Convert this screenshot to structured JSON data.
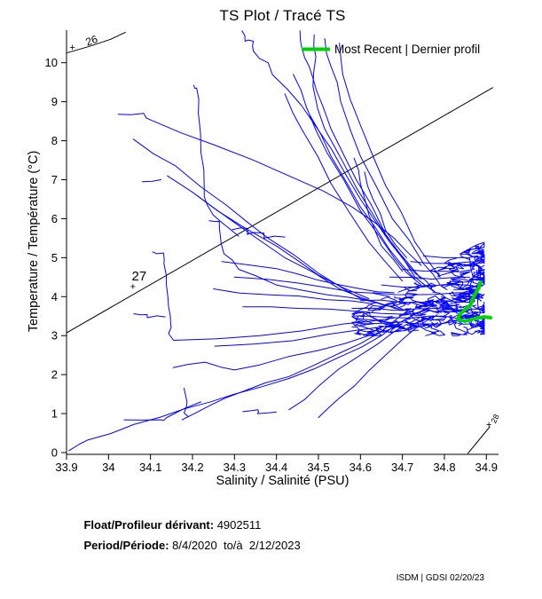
{
  "title": "TS Plot / Tracé TS",
  "legend": {
    "label": "Most Recent | Dernier profil",
    "color": "#00d400"
  },
  "axes": {
    "xlabel": "Salinity / Salinité (PSU)",
    "ylabel": "Temperature / Température (°C)",
    "x_tick_values": [
      33.9,
      34.0,
      34.1,
      34.2,
      34.3,
      34.4,
      34.5,
      34.6,
      34.7,
      34.8,
      34.9
    ],
    "x_tick_labels": [
      "33.9",
      "34",
      "34.1",
      "34.2",
      "34.3",
      "34.4",
      "34.5",
      "34.6",
      "34.7",
      "34.8",
      "34.9"
    ],
    "y_tick_values": [
      0,
      1,
      2,
      3,
      4,
      5,
      6,
      7,
      8,
      9,
      10
    ],
    "y_tick_labels": [
      "0",
      "1",
      "2",
      "3",
      "4",
      "5",
      "6",
      "7",
      "8",
      "9",
      "10"
    ]
  },
  "footer": {
    "float_label": "Float/Profileur dérivant:",
    "float_value": " 4902511",
    "period_label": "Period/Période:",
    "period_value": " 8/4/2020  to/à  2/12/2023"
  },
  "watermark": "ISDM | GDSI 02/20/23",
  "chart_data": {
    "type": "line",
    "title": "TS Plot / Tracé TS",
    "xlabel": "Salinity / Salinité (PSU)",
    "ylabel": "Temperature / Température (°C)",
    "xlim": [
      33.9,
      34.93
    ],
    "ylim": [
      0,
      10.82
    ],
    "grid": false,
    "legend_position": "top-right",
    "profile_color": "#0000ff",
    "recent_color": "#00d400",
    "contour_color": "#000000",
    "density_contours": [
      {
        "label": "26",
        "label_pos": [
          33.959,
          10.59
        ],
        "label_angle": -20,
        "plus_pos": [
          33.914,
          10.38
        ],
        "points": [
          [
            33.9,
            10.25
          ],
          [
            33.955,
            10.42
          ],
          [
            34.005,
            10.6
          ],
          [
            34.04,
            10.78
          ]
        ]
      },
      {
        "label": "27",
        "label_pos": [
          34.073,
          4.53
        ],
        "label_angle": 0,
        "plus_pos": [
          34.058,
          4.24
        ],
        "points": [
          [
            33.9,
            3.07
          ],
          [
            34.915,
            9.36
          ]
        ]
      },
      {
        "label": "28",
        "label_pos": [
          34.917,
          0.89
        ],
        "label_angle": -63,
        "plus_pos": [
          34.906,
          0.7
        ],
        "points": [
          [
            34.856,
            -0.02
          ],
          [
            34.908,
            0.66
          ]
        ]
      }
    ],
    "profiles": [
      [
        [
          34.318,
          10.82
        ],
        [
          34.325,
          10.55
        ],
        [
          34.345,
          10.55
        ],
        [
          34.345,
          10.3
        ],
        [
          34.38,
          10.0
        ],
        [
          34.39,
          9.7
        ],
        [
          34.46,
          8.9
        ],
        [
          34.53,
          7.8
        ],
        [
          34.6,
          6.5
        ],
        [
          34.67,
          5.4
        ],
        [
          34.73,
          4.6
        ],
        [
          34.77,
          4.25
        ]
      ],
      [
        [
          34.456,
          10.82
        ],
        [
          34.46,
          10.4
        ],
        [
          34.478,
          9.9
        ],
        [
          34.495,
          9.3
        ],
        [
          34.53,
          8.3
        ],
        [
          34.59,
          7.0
        ],
        [
          34.66,
          5.6
        ],
        [
          34.73,
          4.5
        ],
        [
          34.78,
          4.1
        ]
      ],
      [
        [
          34.49,
          10.72
        ],
        [
          34.494,
          10.15
        ],
        [
          34.487,
          9.4
        ],
        [
          34.515,
          8.3
        ],
        [
          34.59,
          6.8
        ],
        [
          34.67,
          5.4
        ],
        [
          34.745,
          4.45
        ]
      ],
      [
        [
          34.515,
          10.62
        ],
        [
          34.53,
          9.9
        ],
        [
          34.553,
          9.0
        ],
        [
          34.6,
          7.6
        ],
        [
          34.676,
          6.0
        ],
        [
          34.75,
          4.85
        ],
        [
          34.79,
          4.3
        ]
      ],
      [
        [
          34.55,
          10.5
        ],
        [
          34.558,
          9.7
        ],
        [
          34.6,
          8.4
        ],
        [
          34.66,
          6.85
        ],
        [
          34.73,
          5.4
        ],
        [
          34.79,
          4.5
        ]
      ],
      [
        [
          34.44,
          9.7
        ],
        [
          34.47,
          8.9
        ],
        [
          34.52,
          7.7
        ],
        [
          34.6,
          6.2
        ],
        [
          34.68,
          5.0
        ],
        [
          34.745,
          4.3
        ]
      ],
      [
        [
          34.42,
          9.2
        ],
        [
          34.46,
          8.3
        ],
        [
          34.53,
          6.9
        ],
        [
          34.62,
          5.4
        ],
        [
          34.7,
          4.4
        ]
      ],
      [
        [
          34.48,
          8.65
        ],
        [
          34.53,
          7.6
        ],
        [
          34.6,
          6.3
        ],
        [
          34.67,
          5.2
        ],
        [
          34.73,
          4.45
        ]
      ],
      [
        [
          34.585,
          7.55
        ],
        [
          34.6,
          6.9
        ],
        [
          34.62,
          6.1
        ],
        [
          34.65,
          5.3
        ],
        [
          34.7,
          4.65
        ]
      ],
      [
        [
          34.61,
          7.2
        ],
        [
          34.63,
          6.5
        ],
        [
          34.66,
          5.7
        ],
        [
          34.71,
          5.0
        ]
      ],
      [
        [
          34.203,
          9.42
        ],
        [
          34.21,
          9.35
        ],
        [
          34.214,
          8.7
        ],
        [
          34.22,
          7.7
        ],
        [
          34.228,
          6.8
        ],
        [
          34.235,
          6.35
        ],
        [
          34.27,
          5.9
        ],
        [
          34.31,
          5.55
        ]
      ],
      [
        [
          34.023,
          8.68
        ],
        [
          34.084,
          8.7
        ],
        [
          34.09,
          8.58
        ],
        [
          34.25,
          7.9
        ],
        [
          34.44,
          7.05
        ],
        [
          34.58,
          6.3
        ],
        [
          34.68,
          5.5
        ],
        [
          34.745,
          4.8
        ]
      ],
      [
        [
          34.059,
          8.04
        ],
        [
          34.16,
          7.35
        ],
        [
          34.28,
          6.35
        ],
        [
          34.38,
          5.5
        ],
        [
          34.5,
          4.6
        ],
        [
          34.6,
          3.95
        ],
        [
          34.7,
          3.65
        ]
      ],
      [
        [
          34.21,
          6.6
        ],
        [
          34.3,
          5.9
        ],
        [
          34.42,
          5.0
        ],
        [
          34.55,
          4.2
        ],
        [
          34.655,
          3.8
        ]
      ],
      [
        [
          34.14,
          7.1
        ],
        [
          34.26,
          6.2
        ],
        [
          34.4,
          5.3
        ],
        [
          34.5,
          4.55
        ],
        [
          34.62,
          3.95
        ]
      ],
      [
        [
          34.24,
          5.95
        ],
        [
          34.264,
          5.93
        ],
        [
          34.266,
          5.6
        ],
        [
          34.275,
          5.1
        ],
        [
          34.31,
          4.7
        ],
        [
          34.4,
          4.3
        ],
        [
          34.52,
          4.05
        ],
        [
          34.62,
          3.9
        ]
      ],
      [
        [
          34.295,
          5.72
        ],
        [
          34.33,
          5.75
        ],
        [
          34.33,
          5.6
        ],
        [
          34.37,
          5.63
        ],
        [
          34.37,
          5.5
        ],
        [
          34.42,
          5.53
        ]
      ],
      [
        [
          34.105,
          5.15
        ],
        [
          34.131,
          5.12
        ],
        [
          34.132,
          4.85
        ],
        [
          34.138,
          4.3
        ],
        [
          34.143,
          3.75
        ],
        [
          34.148,
          3.3
        ],
        [
          34.143,
          3.05
        ],
        [
          34.155,
          2.88
        ],
        [
          34.36,
          3.0
        ],
        [
          34.56,
          3.3
        ],
        [
          34.68,
          3.45
        ]
      ],
      [
        [
          34.253,
          2.73
        ],
        [
          34.44,
          2.87
        ],
        [
          34.6,
          3.15
        ],
        [
          34.7,
          3.3
        ]
      ],
      [
        [
          34.154,
          2.18
        ],
        [
          34.23,
          2.32
        ],
        [
          34.3,
          2.12
        ],
        [
          34.36,
          2.25
        ],
        [
          34.5,
          2.62
        ],
        [
          34.62,
          3.0
        ],
        [
          34.7,
          3.3
        ]
      ],
      [
        [
          34.06,
          3.56
        ],
        [
          34.092,
          3.54
        ],
        [
          34.092,
          3.46
        ],
        [
          34.135,
          3.48
        ]
      ],
      [
        [
          34.08,
          6.95
        ],
        [
          34.125,
          7.0
        ]
      ],
      [
        [
          34.27,
          4.9
        ],
        [
          34.4,
          4.72
        ],
        [
          34.5,
          4.42
        ],
        [
          34.6,
          4.2
        ],
        [
          34.68,
          4.1
        ]
      ],
      [
        [
          34.3,
          4.5
        ],
        [
          34.45,
          4.35
        ],
        [
          34.58,
          4.12
        ],
        [
          34.67,
          4.0
        ]
      ],
      [
        [
          34.25,
          4.2
        ],
        [
          34.38,
          4.05
        ],
        [
          34.52,
          3.92
        ],
        [
          34.63,
          3.82
        ]
      ],
      [
        [
          34.32,
          3.74
        ],
        [
          34.45,
          3.7
        ],
        [
          34.6,
          3.62
        ],
        [
          34.7,
          3.55
        ]
      ],
      [
        [
          33.906,
          0.05
        ],
        [
          33.95,
          0.32
        ],
        [
          34.06,
          0.72
        ],
        [
          34.18,
          1.12
        ],
        [
          34.3,
          1.5
        ],
        [
          34.43,
          1.9
        ],
        [
          34.55,
          2.45
        ],
        [
          34.65,
          3.0
        ],
        [
          34.73,
          3.55
        ],
        [
          34.78,
          3.8
        ]
      ],
      [
        [
          34.175,
          0.84
        ],
        [
          34.24,
          1.2
        ],
        [
          34.316,
          1.55
        ],
        [
          34.43,
          1.95
        ],
        [
          34.55,
          2.55
        ],
        [
          34.65,
          3.1
        ],
        [
          34.72,
          3.7
        ]
      ],
      [
        [
          34.037,
          0.84
        ],
        [
          34.122,
          0.84
        ],
        [
          34.139,
          0.9
        ],
        [
          34.22,
          1.3
        ]
      ],
      [
        [
          34.32,
          1.05
        ],
        [
          34.355,
          1.1
        ],
        [
          34.355,
          1.0
        ],
        [
          34.4,
          1.04
        ]
      ],
      [
        [
          34.18,
          1.65
        ],
        [
          34.187,
          1.3
        ],
        [
          34.18,
          1.02
        ],
        [
          34.19,
          0.92
        ]
      ],
      [
        [
          34.5,
          0.9
        ],
        [
          34.55,
          1.4
        ],
        [
          34.62,
          2.1
        ],
        [
          34.7,
          2.9
        ],
        [
          34.76,
          3.4
        ]
      ],
      [
        [
          34.43,
          1.1
        ],
        [
          34.5,
          1.7
        ],
        [
          34.6,
          2.5
        ],
        [
          34.68,
          3.1
        ],
        [
          34.74,
          3.45
        ]
      ],
      [
        [
          34.88,
          4.8
        ],
        [
          34.886,
          4.4
        ],
        [
          34.879,
          4.0
        ],
        [
          34.886,
          3.6
        ],
        [
          34.879,
          3.3
        ]
      ],
      [
        [
          34.86,
          5.0
        ],
        [
          34.868,
          4.5
        ],
        [
          34.86,
          4.05
        ],
        [
          34.868,
          3.55
        ],
        [
          34.862,
          3.25
        ]
      ],
      [
        [
          34.6,
          3.3
        ],
        [
          34.7,
          3.35
        ],
        [
          34.75,
          3.3
        ],
        [
          34.82,
          3.35
        ],
        [
          34.87,
          3.3
        ]
      ],
      [
        [
          34.62,
          3.5
        ],
        [
          34.72,
          3.45
        ],
        [
          34.8,
          3.5
        ],
        [
          34.86,
          3.45
        ]
      ],
      [
        [
          34.58,
          3.7
        ],
        [
          34.68,
          3.65
        ],
        [
          34.78,
          3.7
        ],
        [
          34.86,
          3.65
        ],
        [
          34.88,
          3.6
        ]
      ],
      [
        [
          34.6,
          3.9
        ],
        [
          34.7,
          3.85
        ],
        [
          34.8,
          3.9
        ],
        [
          34.87,
          3.85
        ]
      ],
      [
        [
          34.63,
          4.1
        ],
        [
          34.73,
          4.05
        ],
        [
          34.83,
          4.1
        ],
        [
          34.88,
          4.05
        ]
      ],
      [
        [
          34.65,
          4.3
        ],
        [
          34.75,
          4.25
        ],
        [
          34.85,
          4.3
        ],
        [
          34.88,
          4.25
        ]
      ],
      [
        [
          34.67,
          4.5
        ],
        [
          34.77,
          4.45
        ],
        [
          34.86,
          4.5
        ]
      ],
      [
        [
          34.7,
          4.7
        ],
        [
          34.8,
          4.65
        ],
        [
          34.87,
          4.7
        ]
      ],
      [
        [
          34.72,
          4.9
        ],
        [
          34.82,
          4.85
        ],
        [
          34.88,
          4.9
        ]
      ],
      [
        [
          34.75,
          5.05
        ],
        [
          34.84,
          5.0
        ],
        [
          34.88,
          5.05
        ]
      ]
    ],
    "cluster_fill": {
      "seed": 11,
      "count": 90,
      "s_min": 34.58,
      "s_max": 34.895,
      "t_min": 3.0
    },
    "recent_profile": [
      [
        34.887,
        4.37
      ],
      [
        34.879,
        4.17
      ],
      [
        34.868,
        3.96
      ],
      [
        34.862,
        3.78
      ],
      [
        34.849,
        3.67
      ],
      [
        34.836,
        3.53
      ],
      [
        34.832,
        3.42
      ],
      [
        34.849,
        3.37
      ],
      [
        34.874,
        3.44
      ],
      [
        34.895,
        3.48
      ],
      [
        34.91,
        3.46
      ]
    ]
  }
}
